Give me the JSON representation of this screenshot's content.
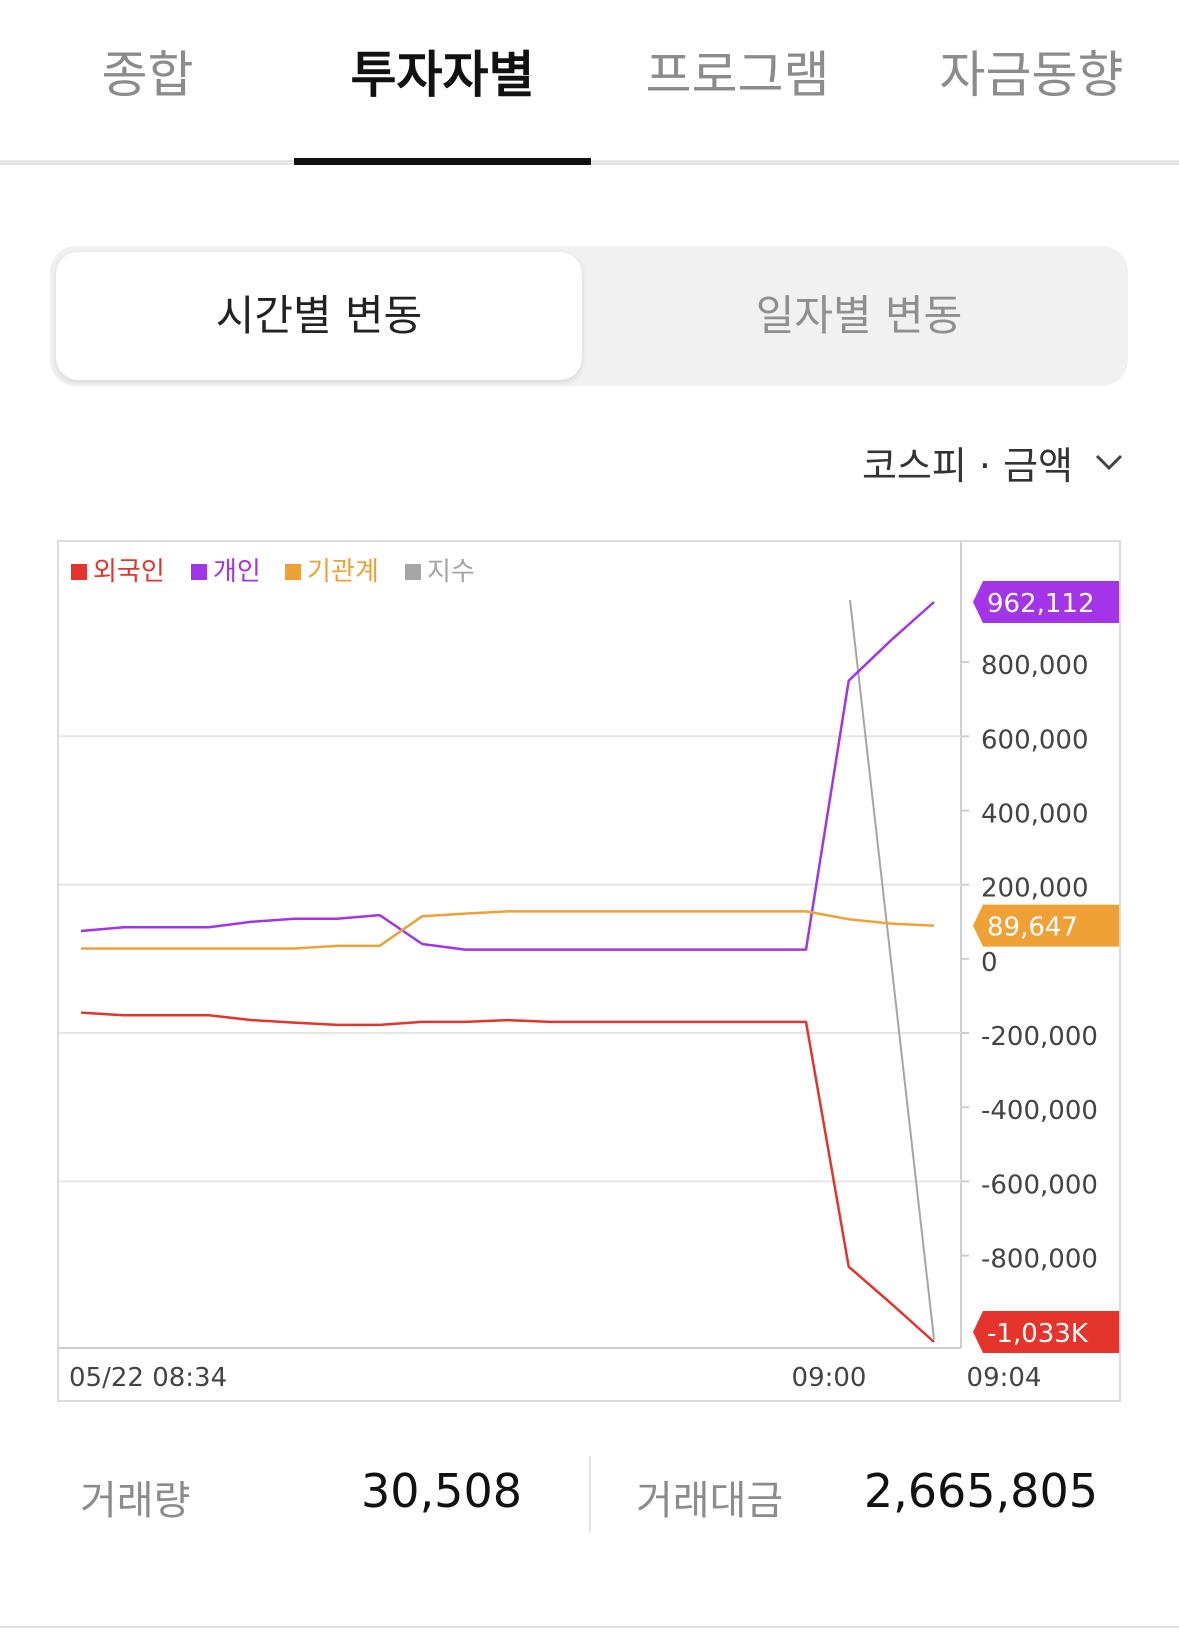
{
  "tabs": [
    {
      "label": "종합"
    },
    {
      "label": "투자자별"
    },
    {
      "label": "프로그램"
    },
    {
      "label": "자금동향"
    }
  ],
  "active_tab": 1,
  "segment": {
    "active": "시간별 변동",
    "inactive": "일자별 변동"
  },
  "selector": {
    "label": "코스피 · 금액",
    "icon": "chevron-down-icon"
  },
  "chart_data": {
    "type": "line",
    "legend": [
      {
        "name": "외국인",
        "color": "#e5342b"
      },
      {
        "name": "개인",
        "color": "#a334e8"
      },
      {
        "name": "기관계",
        "color": "#f0a136"
      },
      {
        "name": "지수",
        "color": "#a5a5a5"
      }
    ],
    "x_labels": [
      "05/22 08:34",
      "09:00",
      "09:04"
    ],
    "y_ticks": [
      "800,000",
      "600,000",
      "400,000",
      "200,000",
      "0",
      "-200,000",
      "-400,000",
      "-600,000",
      "-800,000"
    ],
    "y_tick_values": [
      800000,
      600000,
      400000,
      200000,
      0,
      -200000,
      -400000,
      -600000,
      -800000
    ],
    "ylim": [
      -1033000,
      962112
    ],
    "series": [
      {
        "name": "개인",
        "color": "#a334e8",
        "values": [
          75000,
          85000,
          85000,
          85000,
          100000,
          108000,
          108000,
          118000,
          40000,
          25000,
          25000,
          25000,
          25000,
          25000,
          25000,
          25000,
          25000,
          25000,
          750000,
          860000,
          962112
        ]
      },
      {
        "name": "기관계",
        "color": "#f0a136",
        "values": [
          28000,
          28000,
          28000,
          28000,
          28000,
          28000,
          35000,
          35000,
          115000,
          122000,
          128000,
          128000,
          128000,
          128000,
          128000,
          128000,
          128000,
          128000,
          107000,
          95000,
          89647
        ]
      },
      {
        "name": "외국인",
        "color": "#e5342b",
        "values": [
          -145000,
          -152000,
          -152000,
          -152000,
          -165000,
          -172000,
          -178000,
          -178000,
          -170000,
          -170000,
          -165000,
          -170000,
          -170000,
          -170000,
          -170000,
          -170000,
          -170000,
          -170000,
          -830000,
          -930000,
          -1033000
        ]
      }
    ],
    "index_line": {
      "name": "지수",
      "color": "#a5a5a5"
    },
    "end_labels": [
      {
        "text": "962,112",
        "color": "#a334e8",
        "value": 962112
      },
      {
        "text": "89,647",
        "color": "#f0a136",
        "value": 89647
      },
      {
        "text": "-1,033K",
        "color": "#e5342b",
        "value": -1033000
      }
    ],
    "grid": true
  },
  "stats": {
    "volume_label": "거래량",
    "volume_value": "30,508",
    "amount_label": "거래대금",
    "amount_value": "2,665,805"
  }
}
